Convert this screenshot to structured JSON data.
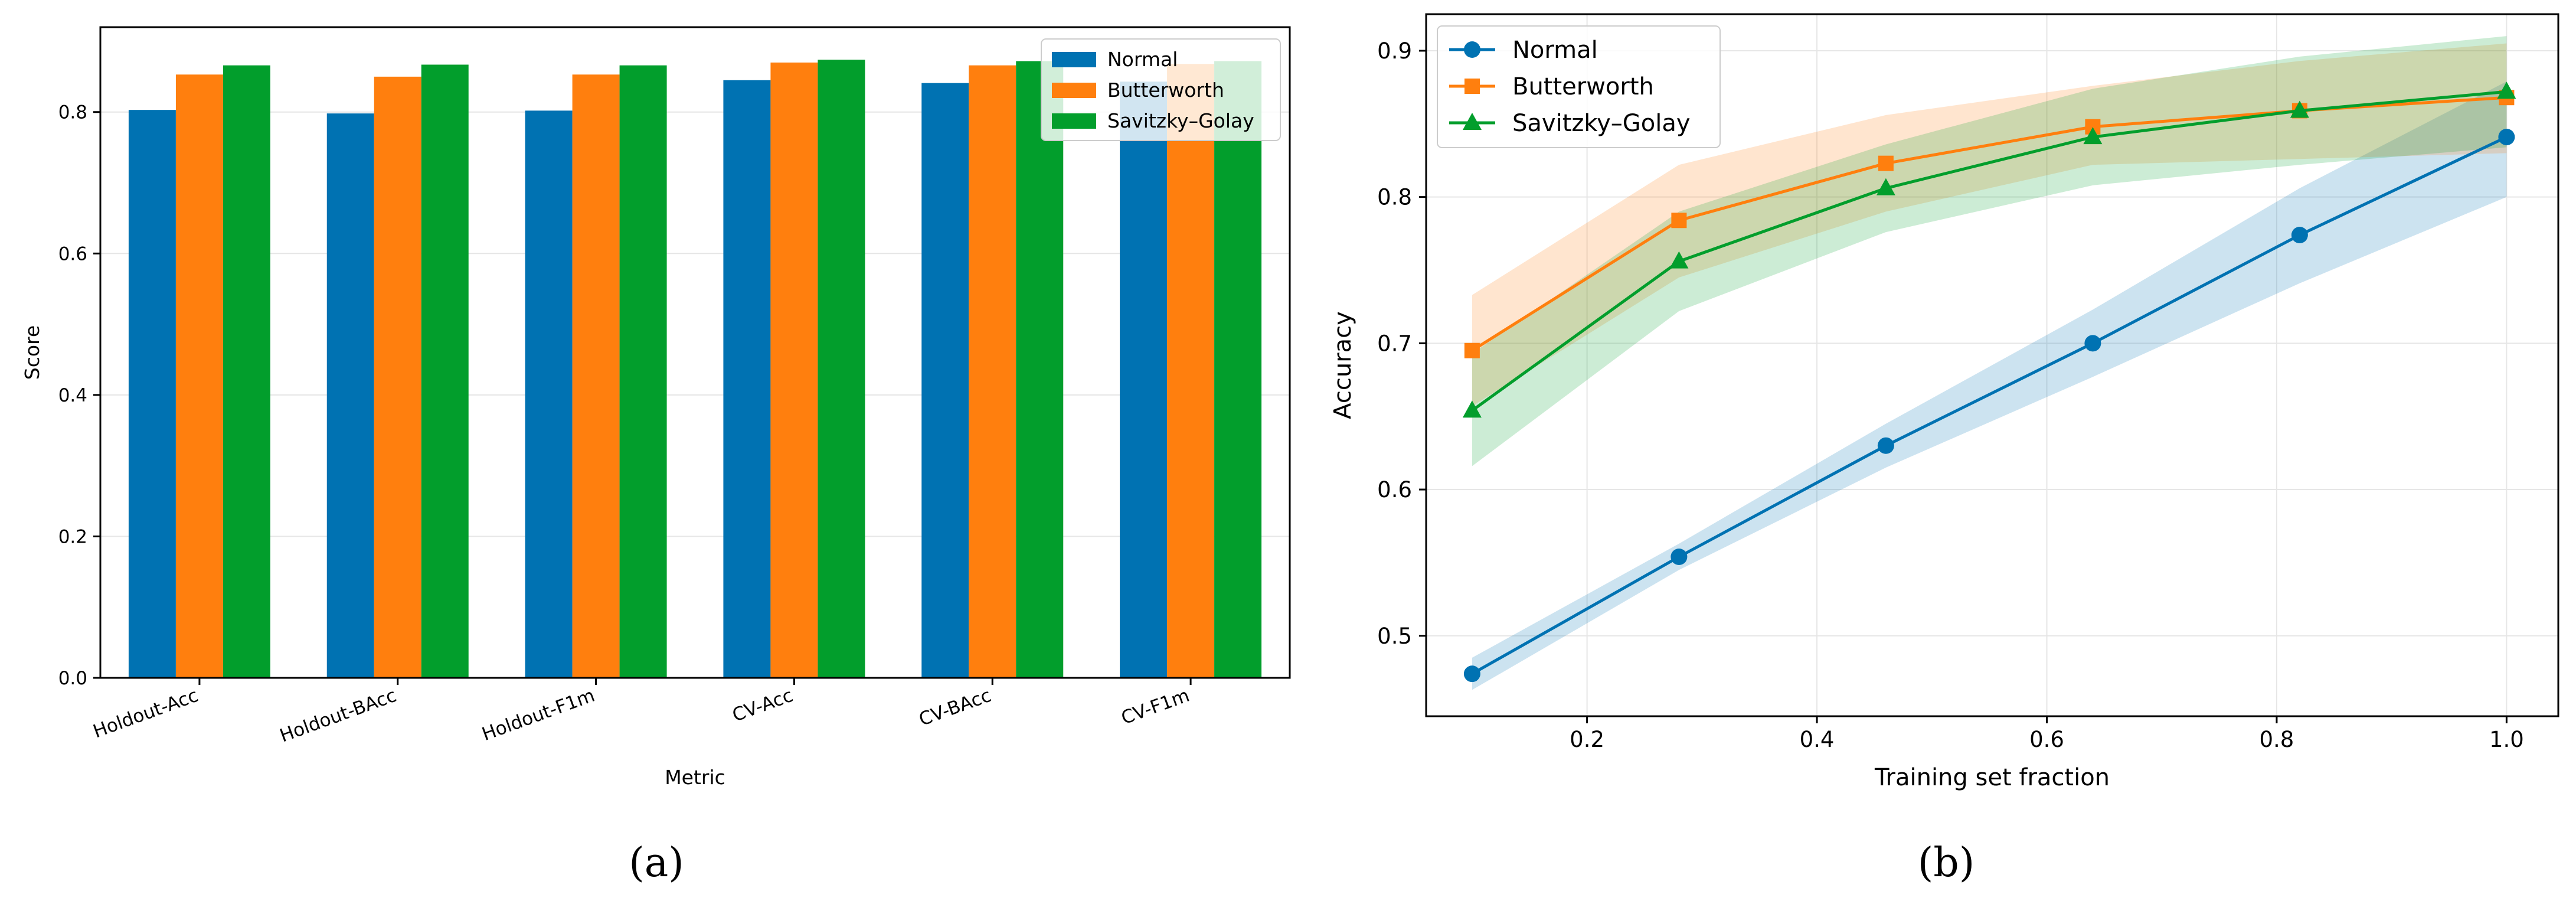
{
  "chart_data": [
    {
      "panel_label": "(a)",
      "type": "bar",
      "title": "",
      "xlabel": "Metric",
      "ylabel": "Score",
      "categories": [
        "Holdout-Acc",
        "Holdout-BAcc",
        "Holdout-F1m",
        "CV-Acc",
        "CV-BAcc",
        "CV-F1m"
      ],
      "ylim": [
        0,
        0.92
      ],
      "yticks": [
        0.0,
        0.2,
        0.4,
        0.6,
        0.8
      ],
      "ytick_labels": [
        "0.0",
        "0.2",
        "0.4",
        "0.6",
        "0.8"
      ],
      "grid": true,
      "legend_position": "top-right",
      "series": [
        {
          "name": "Normal",
          "color": "#0072b2",
          "values": [
            0.803,
            0.798,
            0.802,
            0.845,
            0.841,
            0.843
          ]
        },
        {
          "name": "Butterworth",
          "color": "#ff7f0e",
          "values": [
            0.853,
            0.85,
            0.853,
            0.87,
            0.866,
            0.868
          ]
        },
        {
          "name": "Savitzky–Golay",
          "color": "#029e2c",
          "values": [
            0.866,
            0.867,
            0.866,
            0.874,
            0.872,
            0.872
          ]
        }
      ]
    },
    {
      "panel_label": "(b)",
      "type": "line",
      "title": "",
      "xlabel": "Training set fraction",
      "ylabel": "Accuracy",
      "x": [
        0.1,
        0.28,
        0.46,
        0.64,
        0.82,
        1.0
      ],
      "xlim": [
        0.06,
        1.045
      ],
      "ylim": [
        0.445,
        0.925
      ],
      "xticks": [
        0.2,
        0.4,
        0.6,
        0.8,
        1.0
      ],
      "xtick_labels": [
        "0.2",
        "0.4",
        "0.6",
        "0.8",
        "1.0"
      ],
      "yticks": [
        0.5,
        0.6,
        0.7,
        0.8,
        0.9
      ],
      "ytick_labels": [
        "0.5",
        "0.6",
        "0.7",
        "0.8",
        "0.9"
      ],
      "grid": true,
      "legend_position": "top-left",
      "series": [
        {
          "name": "Normal",
          "color": "#0072b2",
          "marker": "circle",
          "values": [
            0.474,
            0.554,
            0.63,
            0.7,
            0.774,
            0.841
          ],
          "lower": [
            0.463,
            0.545,
            0.615,
            0.677,
            0.741,
            0.8
          ],
          "upper": [
            0.485,
            0.563,
            0.645,
            0.723,
            0.806,
            0.879
          ]
        },
        {
          "name": "Butterworth",
          "color": "#ff7f0e",
          "marker": "square",
          "values": [
            0.695,
            0.784,
            0.823,
            0.848,
            0.859,
            0.868
          ],
          "lower": [
            0.657,
            0.745,
            0.79,
            0.822,
            0.826,
            0.83
          ],
          "upper": [
            0.733,
            0.822,
            0.856,
            0.876,
            0.893,
            0.905
          ]
        },
        {
          "name": "Savitzky–Golay",
          "color": "#029e2c",
          "marker": "triangle",
          "values": [
            0.654,
            0.756,
            0.806,
            0.841,
            0.859,
            0.872
          ],
          "lower": [
            0.616,
            0.722,
            0.776,
            0.808,
            0.822,
            0.834
          ],
          "upper": [
            0.693,
            0.79,
            0.836,
            0.874,
            0.896,
            0.91
          ]
        }
      ]
    }
  ]
}
